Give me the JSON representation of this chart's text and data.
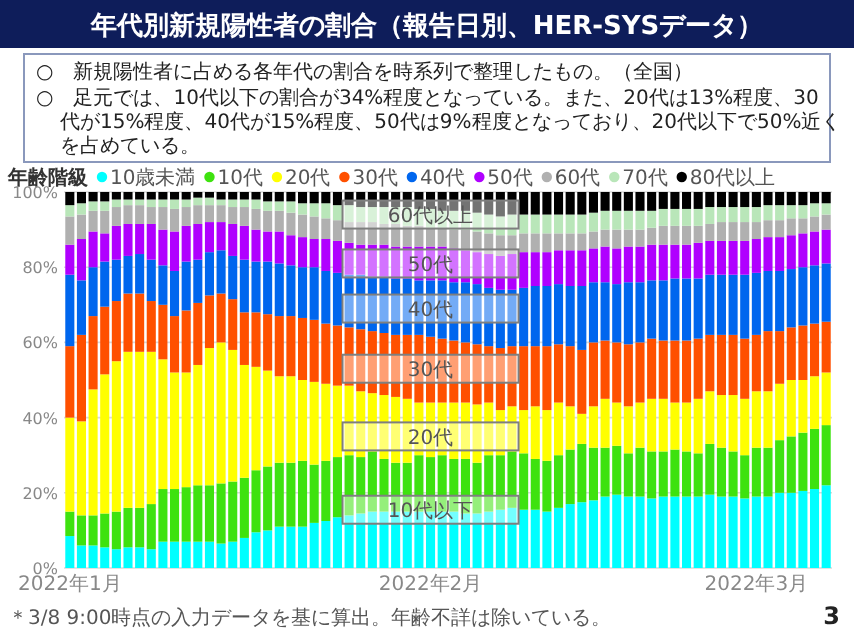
{
  "chart_data": {
    "type": "bar",
    "stacked": true,
    "title": "年代別新規陽性者の割合（報告日別、HER-SYSデータ）",
    "legend_title": "年齢階級",
    "legend": "top",
    "grid": "y",
    "x": [
      "2022-01-01",
      "2022-01-02",
      "2022-01-03",
      "2022-01-04",
      "2022-01-05",
      "2022-01-06",
      "2022-01-07",
      "2022-01-08",
      "2022-01-09",
      "2022-01-10",
      "2022-01-11",
      "2022-01-12",
      "2022-01-13",
      "2022-01-14",
      "2022-01-15",
      "2022-01-16",
      "2022-01-17",
      "2022-01-18",
      "2022-01-19",
      "2022-01-20",
      "2022-01-21",
      "2022-01-22",
      "2022-01-23",
      "2022-01-24",
      "2022-01-25",
      "2022-01-26",
      "2022-01-27",
      "2022-01-28",
      "2022-01-29",
      "2022-01-30",
      "2022-01-31",
      "2022-02-01",
      "2022-02-02",
      "2022-02-03",
      "2022-02-04",
      "2022-02-05",
      "2022-02-06",
      "2022-02-07",
      "2022-02-08",
      "2022-02-09",
      "2022-02-10",
      "2022-02-11",
      "2022-02-12",
      "2022-02-13",
      "2022-02-14",
      "2022-02-15",
      "2022-02-16",
      "2022-02-17",
      "2022-02-18",
      "2022-02-19",
      "2022-02-20",
      "2022-02-21",
      "2022-02-22",
      "2022-02-23",
      "2022-02-24",
      "2022-02-25",
      "2022-02-26",
      "2022-02-27",
      "2022-02-28",
      "2022-03-01",
      "2022-03-02",
      "2022-03-03",
      "2022-03-04",
      "2022-03-05",
      "2022-03-06",
      "2022-03-07"
    ],
    "xlim": [
      "2021-12-31T12:00",
      "2022-03-07T12:00"
    ],
    "xticks": [
      {
        "value": "2022-01-01",
        "label": "2022年1月"
      },
      {
        "value": "2022-02-01",
        "label": "2022年2月"
      },
      {
        "value": "2022-03-01",
        "label": "2022年3月"
      }
    ],
    "ylim": [
      0,
      100
    ],
    "yticks": [
      {
        "value": 0,
        "label": "0%"
      },
      {
        "value": 20,
        "label": "20%"
      },
      {
        "value": 40,
        "label": "40%"
      },
      {
        "value": 60,
        "label": "60%"
      },
      {
        "value": 80,
        "label": "80%"
      },
      {
        "value": 100,
        "label": "100%"
      }
    ],
    "series": [
      {
        "name": "10歳未満",
        "color": "#00ffff",
        "values": [
          8.5,
          6,
          6,
          5.5,
          5,
          5.5,
          5.5,
          5,
          7,
          7,
          7,
          7,
          7,
          6.5,
          7,
          8,
          9.5,
          10,
          11,
          11,
          11,
          12,
          12.5,
          13.5,
          14,
          14.5,
          15,
          15,
          15,
          15,
          15,
          15,
          15,
          15,
          14.5,
          14.5,
          15,
          15.5,
          16,
          15.5,
          15.5,
          15,
          16,
          17,
          17.5,
          18,
          19,
          19.5,
          19,
          19,
          18.5,
          19,
          19,
          19,
          19,
          19.5,
          19,
          19,
          18.5,
          19,
          19,
          20,
          20,
          20.5,
          21,
          22
        ]
      },
      {
        "name": "10代",
        "color": "#3ee20f",
        "values": [
          6.5,
          8,
          8,
          9,
          10,
          10.5,
          10.5,
          12,
          14,
          14,
          14.5,
          15,
          15,
          16,
          16,
          16,
          16.5,
          17,
          17,
          17,
          17.5,
          15.5,
          16,
          16,
          16,
          15,
          16,
          14,
          13,
          13,
          15,
          14.5,
          15,
          14,
          14.5,
          13.5,
          15,
          14.5,
          15,
          15,
          13.5,
          13.5,
          14,
          14.5,
          15.5,
          14,
          13,
          13,
          11.5,
          13,
          12.5,
          12,
          12.5,
          12,
          11.5,
          13.5,
          13,
          12,
          11.5,
          13,
          13,
          14,
          15,
          15.5,
          16,
          16
        ]
      },
      {
        "name": "20代",
        "color": "#ffff00",
        "values": [
          25,
          25,
          33.5,
          37,
          40,
          41.5,
          41.5,
          40.5,
          34.5,
          31,
          30.5,
          32,
          36.5,
          37.5,
          35,
          30,
          27.5,
          25.5,
          23,
          23,
          21.5,
          22,
          20.5,
          19,
          18.5,
          17.5,
          15.5,
          17,
          17.5,
          17,
          14,
          14.5,
          14,
          15,
          15,
          15.5,
          14,
          12,
          12,
          11.5,
          14,
          13.5,
          14,
          11.5,
          8,
          11,
          13,
          11.5,
          12.5,
          12,
          14,
          14,
          12.5,
          13,
          14.5,
          14,
          14,
          15,
          15,
          15,
          15,
          15,
          15,
          14,
          14,
          14
        ]
      },
      {
        "name": "30代",
        "color": "#ff5000",
        "values": [
          19,
          23,
          19.5,
          18,
          16,
          15.5,
          15.5,
          13.5,
          14.5,
          15,
          16.5,
          16.5,
          14,
          13,
          13.5,
          14,
          14.5,
          15,
          16,
          16,
          16.5,
          16.5,
          16,
          16,
          15.5,
          16.5,
          16.5,
          16.5,
          16.5,
          17,
          18,
          17.5,
          17,
          16.5,
          16,
          16,
          15,
          16.5,
          16,
          17,
          16,
          17,
          15.5,
          16,
          17,
          17,
          15.5,
          16,
          16.5,
          16,
          16,
          15.5,
          16.5,
          16.5,
          16,
          15,
          16,
          16,
          16,
          15,
          16,
          14,
          14,
          14.5,
          14,
          13.5
        ]
      },
      {
        "name": "40代",
        "color": "#0066ee",
        "values": [
          19,
          14.5,
          13,
          12,
          11,
          10,
          10.5,
          11,
          10.5,
          12,
          13,
          11.5,
          11.5,
          11.5,
          11.5,
          14,
          13.5,
          14,
          14,
          13.5,
          13.5,
          14,
          14,
          14,
          14,
          14.5,
          14.5,
          15,
          15,
          15,
          14.5,
          15,
          15.5,
          15.5,
          16,
          16,
          15.5,
          15.5,
          15,
          15.5,
          16,
          16,
          16,
          16,
          17,
          16,
          15.5,
          15.5,
          16.5,
          16,
          15.5,
          16,
          16.5,
          16.5,
          16,
          16,
          16,
          16,
          17,
          16.5,
          16,
          16,
          15.5,
          15.5,
          15.5,
          15.5
        ]
      },
      {
        "name": "50代",
        "color": "#b000ff",
        "values": [
          8,
          11,
          9.5,
          7.5,
          9,
          8.5,
          8,
          9.5,
          9.5,
          10.5,
          9.5,
          9.5,
          8,
          7.5,
          8.5,
          9,
          8.5,
          8,
          8.5,
          8,
          8,
          7.5,
          8.5,
          8.5,
          8.5,
          8,
          8.5,
          8.5,
          8.5,
          8.5,
          9,
          9,
          9,
          9,
          8.5,
          8.5,
          9,
          9,
          9.5,
          9.5,
          9,
          9,
          9,
          9.5,
          9.5,
          9,
          9.5,
          9.5,
          9.5,
          9.5,
          9.5,
          9.5,
          9,
          9,
          9.5,
          9,
          9,
          9,
          9,
          9,
          9,
          9,
          9,
          9,
          9,
          9
        ]
      },
      {
        "name": "60代",
        "color": "#b0b0b0",
        "values": [
          7.5,
          6.5,
          5.5,
          6,
          5,
          5,
          5,
          4.5,
          6,
          6,
          5,
          5,
          4.5,
          4.5,
          4.5,
          5,
          5.5,
          5.5,
          5.5,
          6,
          6,
          6,
          5.5,
          5.5,
          5.5,
          6,
          6,
          5.5,
          6,
          5.5,
          5.5,
          5,
          5,
          5,
          5.5,
          5.5,
          5.5,
          5.5,
          5,
          5,
          5,
          5,
          4.5,
          4.5,
          4.5,
          4.5,
          4.5,
          5,
          4.5,
          4.5,
          4.5,
          5,
          5,
          5,
          4.5,
          4.5,
          5,
          5,
          5,
          4.5,
          4.5,
          4.5,
          4.5,
          4,
          4,
          4
        ]
      },
      {
        "name": "70代",
        "color": "#b9e6b9",
        "values": [
          3,
          3,
          2.5,
          2.5,
          2,
          1.5,
          1.5,
          2,
          2,
          2.5,
          2,
          2,
          2,
          1.5,
          2,
          2,
          2.5,
          2.5,
          2.5,
          3,
          3,
          3.5,
          4,
          4,
          4.5,
          4,
          4,
          4.5,
          4.5,
          5,
          4.5,
          5,
          4.5,
          5,
          5,
          5,
          5,
          5,
          5.5,
          5,
          5,
          5,
          5,
          5,
          5,
          5,
          5,
          5,
          5,
          5,
          4.5,
          4.5,
          4.5,
          4.5,
          4.5,
          4.5,
          4,
          4,
          4,
          4,
          4,
          4,
          3.5,
          3.5,
          3.5,
          3
        ]
      },
      {
        "name": "80代以上",
        "color": "#000000",
        "values": [
          3.5,
          3,
          2.5,
          2.5,
          2,
          2,
          2,
          2,
          2,
          2,
          2,
          1.5,
          1.5,
          2,
          2,
          2,
          2,
          2.5,
          2.5,
          2.5,
          3,
          3,
          3,
          3.5,
          3.5,
          4,
          4,
          4,
          4,
          4,
          4.5,
          4.5,
          5,
          5,
          5,
          5.5,
          6,
          6.5,
          6,
          6,
          6,
          6,
          6,
          6,
          6,
          5.5,
          5,
          5,
          5,
          5,
          5,
          4.5,
          4.5,
          4.5,
          4.5,
          4,
          4,
          4,
          4,
          4,
          3.5,
          3.5,
          3.5,
          3.5,
          3,
          3
        ]
      }
    ],
    "annotations": [
      "○　新規陽性者に占める各年代の割合を時系列で整理したもの。（全国）",
      "○　足元では、10代以下の割合が34%程度となっている。また、20代は13%程度、30代が15%程度、40代が15%程度、50代は9%程度となっており、20代以下で50%近くを占めている。",
      {
        "text": "60代以上",
        "x": "2022-02-01",
        "y": 94
      },
      {
        "text": "50代",
        "x": "2022-02-01",
        "y": 81
      },
      {
        "text": "40代",
        "x": "2022-02-01",
        "y": 69
      },
      {
        "text": "30代",
        "x": "2022-02-01",
        "y": 53
      },
      {
        "text": "20代",
        "x": "2022-02-01",
        "y": 35
      },
      {
        "text": "10代以下",
        "x": "2022-02-01",
        "y": 15.5
      },
      "＊3/8 9:00時点の入力データを基に算出。年齢不詳は除いている。",
      "3"
    ]
  }
}
